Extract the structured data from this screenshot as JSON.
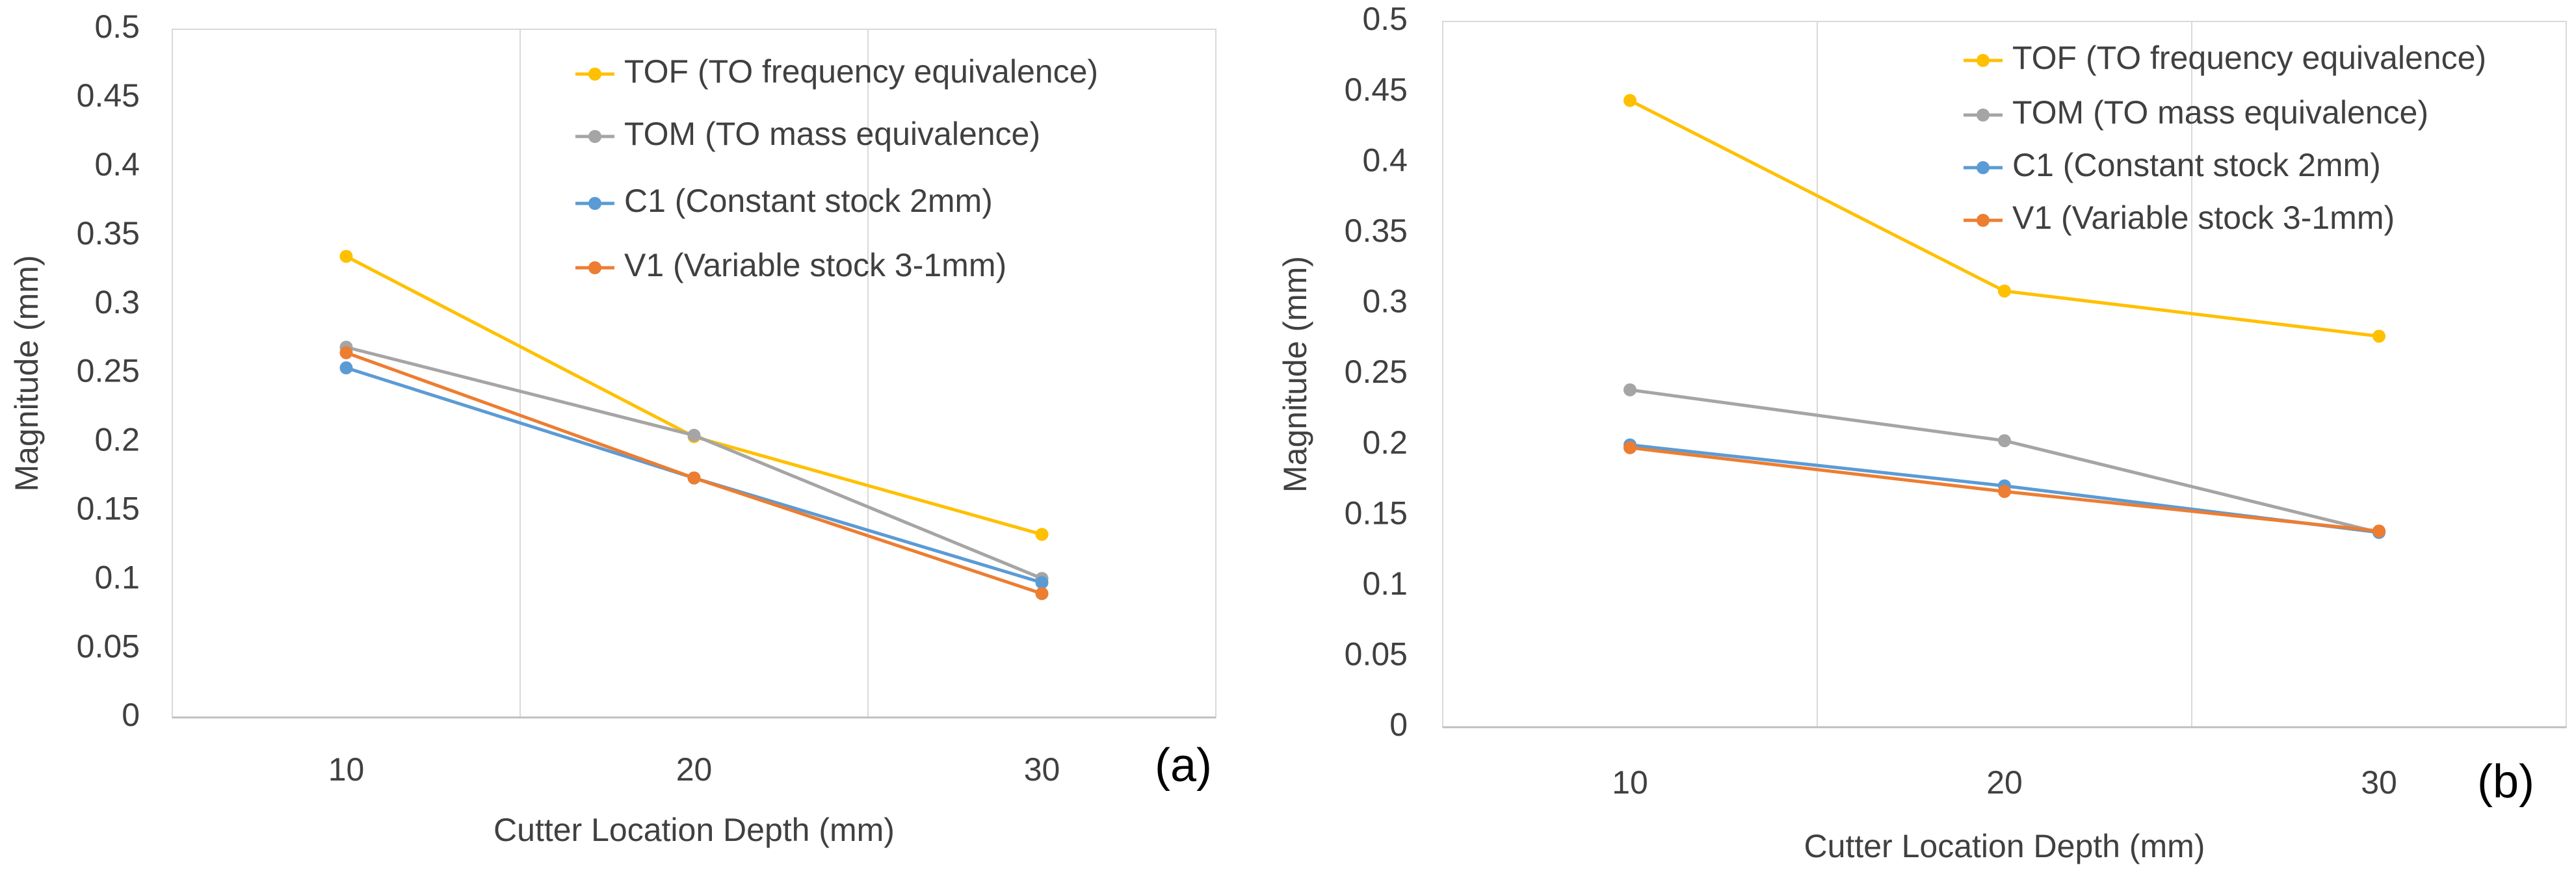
{
  "chart_data": [
    {
      "type": "line",
      "panel_label": "(a)",
      "y_label": "Magnitude (mm)",
      "x_label": "Cutter Location Depth (mm)",
      "categories": [
        "10",
        "20",
        "30"
      ],
      "ylim": [
        0,
        0.5
      ],
      "yticks": [
        0,
        0.05,
        0.1,
        0.15,
        0.2,
        0.25,
        0.3,
        0.35,
        0.4,
        0.45,
        0.5
      ],
      "grid": "vertical",
      "series": [
        {
          "name": "TOF (TO frequency equivalence)",
          "color": "#ffc000",
          "values": [
            0.335,
            0.204,
            0.133
          ]
        },
        {
          "name": "TOM (TO mass equivalence)",
          "color": "#a5a5a5",
          "values": [
            0.269,
            0.205,
            0.101
          ]
        },
        {
          "name": "C1 (Constant stock 2mm)",
          "color": "#5b9bd5",
          "values": [
            0.254,
            0.174,
            0.098
          ]
        },
        {
          "name": "V1 (Variable stock 3-1mm)",
          "color": "#ed7d31",
          "values": [
            0.265,
            0.174,
            0.09
          ]
        }
      ]
    },
    {
      "type": "line",
      "panel_label": "(b)",
      "y_label": "Magnitude (mm)",
      "x_label": "Cutter Location Depth (mm)",
      "categories": [
        "10",
        "20",
        "30"
      ],
      "ylim": [
        0,
        0.5
      ],
      "yticks": [
        0,
        0.05,
        0.1,
        0.15,
        0.2,
        0.25,
        0.3,
        0.35,
        0.4,
        0.45,
        0.5
      ],
      "grid": "vertical",
      "series": [
        {
          "name": "TOF (TO frequency equivalence)",
          "color": "#ffc000",
          "values": [
            0.444,
            0.309,
            0.277
          ]
        },
        {
          "name": "TOM (TO mass equivalence)",
          "color": "#a5a5a5",
          "values": [
            0.239,
            0.203,
            0.138
          ]
        },
        {
          "name": "C1 (Constant stock 2mm)",
          "color": "#5b9bd5",
          "values": [
            0.2,
            0.171,
            0.138
          ]
        },
        {
          "name": "V1 (Variable stock 3-1mm)",
          "color": "#ed7d31",
          "values": [
            0.198,
            0.167,
            0.139
          ]
        }
      ]
    }
  ]
}
